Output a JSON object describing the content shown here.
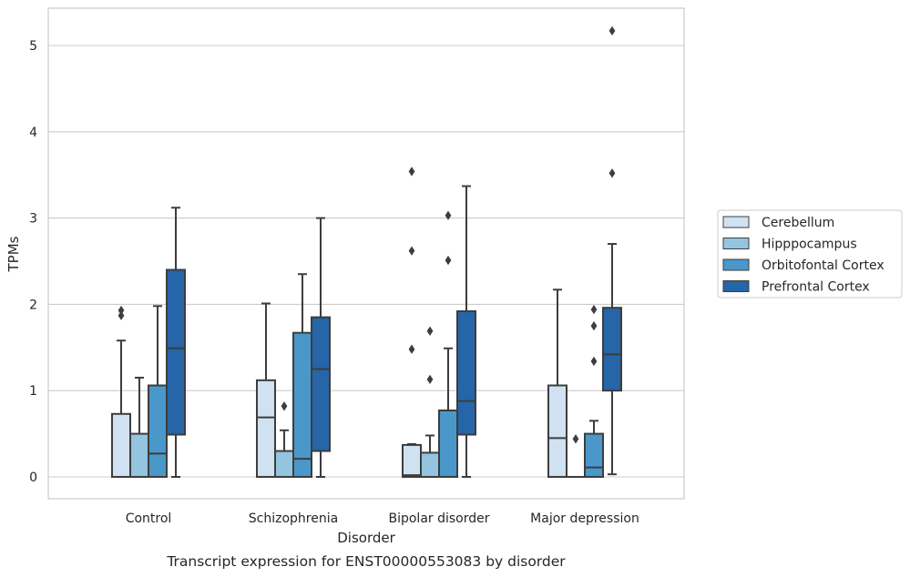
{
  "chart_data": {
    "type": "box",
    "title": "",
    "caption": "Transcript expression for ENST00000553083 by disorder",
    "xlabel": "Disorder",
    "ylabel": "TPMs",
    "ylim": [
      -0.25,
      5.43
    ],
    "yticks": [
      "0",
      "1",
      "2",
      "3",
      "4",
      "5"
    ],
    "grid": "horizontal",
    "legend_position": "right",
    "categories": [
      "Control",
      "Schizophrenia",
      "Bipolar disorder",
      "Major depression"
    ],
    "series": [
      {
        "name": "Cerebellum",
        "color": "#d0e1f2",
        "boxes": [
          {
            "whisker_low": 0,
            "q1": 0,
            "median": 0,
            "q3": 0.73,
            "whisker_high": 1.58,
            "outliers": [
              1.87,
              1.93
            ]
          },
          {
            "whisker_low": 0,
            "q1": 0,
            "median": 0.69,
            "q3": 1.12,
            "whisker_high": 2.01,
            "outliers": []
          },
          {
            "whisker_low": 0,
            "q1": 0,
            "median": 0.02,
            "q3": 0.37,
            "whisker_high": 0.38,
            "outliers": [
              1.48,
              2.62,
              3.54
            ]
          },
          {
            "whisker_low": 0,
            "q1": 0,
            "median": 0.45,
            "q3": 1.06,
            "whisker_high": 2.17,
            "outliers": []
          }
        ]
      },
      {
        "name": "Hipppocampus",
        "color": "#94c4df",
        "boxes": [
          {
            "whisker_low": 0,
            "q1": 0,
            "median": 0,
            "q3": 0.5,
            "whisker_high": 1.15,
            "outliers": []
          },
          {
            "whisker_low": 0,
            "q1": 0,
            "median": 0,
            "q3": 0.3,
            "whisker_high": 0.54,
            "outliers": [
              0.82
            ]
          },
          {
            "whisker_low": 0,
            "q1": 0,
            "median": 0,
            "q3": 0.28,
            "whisker_high": 0.48,
            "outliers": [
              1.13,
              1.69
            ]
          },
          {
            "whisker_low": 0,
            "q1": 0,
            "median": 0,
            "q3": 0,
            "whisker_high": 0,
            "outliers": [
              0.44
            ]
          }
        ]
      },
      {
        "name": "Orbitofontal Cortex",
        "color": "#4a98c9",
        "boxes": [
          {
            "whisker_low": 0,
            "q1": 0,
            "median": 0.27,
            "q3": 1.06,
            "whisker_high": 1.98,
            "outliers": []
          },
          {
            "whisker_low": 0,
            "q1": 0,
            "median": 0.21,
            "q3": 1.67,
            "whisker_high": 2.35,
            "outliers": []
          },
          {
            "whisker_low": 0,
            "q1": 0,
            "median": 0,
            "q3": 0.77,
            "whisker_high": 1.49,
            "outliers": [
              2.51,
              3.03
            ]
          },
          {
            "whisker_low": 0,
            "q1": 0,
            "median": 0.11,
            "q3": 0.5,
            "whisker_high": 0.65,
            "outliers": [
              1.34,
              1.75,
              1.94
            ]
          }
        ]
      },
      {
        "name": "Prefrontal Cortex",
        "color": "#2565a8",
        "boxes": [
          {
            "whisker_low": 0,
            "q1": 0.49,
            "median": 1.49,
            "q3": 2.4,
            "whisker_high": 3.12,
            "outliers": []
          },
          {
            "whisker_low": 0,
            "q1": 0.3,
            "median": 1.25,
            "q3": 1.85,
            "whisker_high": 3.0,
            "outliers": []
          },
          {
            "whisker_low": 0,
            "q1": 0.49,
            "median": 0.88,
            "q3": 1.92,
            "whisker_high": 3.37,
            "outliers": []
          },
          {
            "whisker_low": 0.03,
            "q1": 1.0,
            "median": 1.42,
            "q3": 1.96,
            "whisker_high": 2.7,
            "outliers": [
              3.52,
              5.17
            ]
          }
        ]
      }
    ]
  }
}
